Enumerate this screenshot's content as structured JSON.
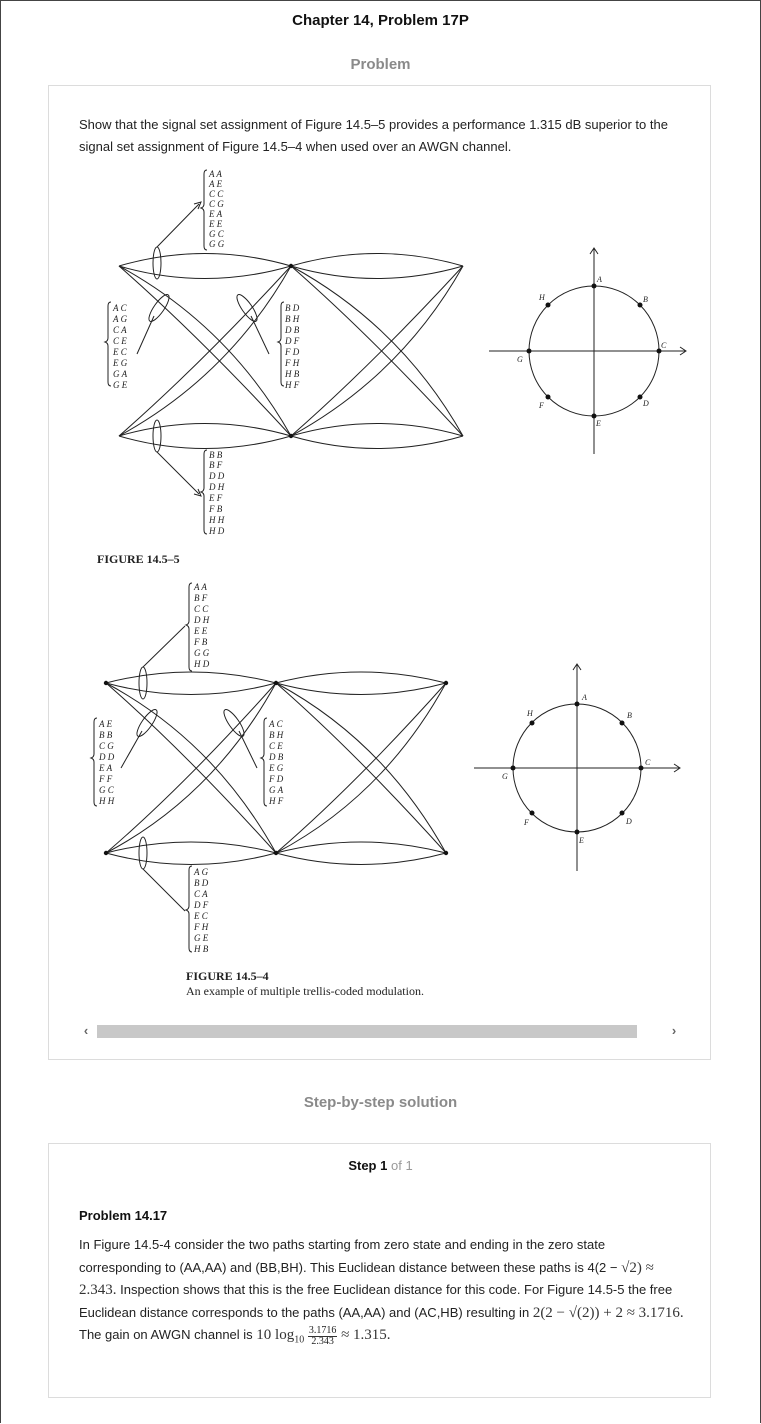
{
  "page": {
    "title": "Chapter 14, Problem 17P",
    "problem_heading": "Problem",
    "solution_heading": "Step-by-step solution"
  },
  "problem": {
    "text": "Show that the signal set assignment of Figure 14.5–5 provides a performance 1.315 dB superior to the signal set assignment of Figure 14.5–4 when used over an AWGN channel."
  },
  "figure_a": {
    "caption": "FIGURE 14.5–5",
    "top_labels": [
      "A A",
      "A E",
      "C C",
      "C G",
      "E A",
      "E E",
      "G C",
      "G G"
    ],
    "left_labels": [
      "A C",
      "A G",
      "C A",
      "C E",
      "E C",
      "E G",
      "G A",
      "G E"
    ],
    "mid_labels": [
      "B D",
      "B H",
      "D B",
      "D F",
      "F D",
      "F H",
      "H B",
      "H F"
    ],
    "bottom_labels": [
      "B B",
      "B F",
      "D D",
      "D H",
      "E F",
      "F B",
      "H H",
      "H D"
    ],
    "constellation": [
      "A",
      "B",
      "C",
      "D",
      "E",
      "F",
      "G",
      "H"
    ]
  },
  "figure_b": {
    "caption": "FIGURE 14.5–4",
    "subcaption": "An example of multiple trellis-coded modulation.",
    "top_labels": [
      "A A",
      "B F",
      "C C",
      "D H",
      "E E",
      "F B",
      "G G",
      "H D"
    ],
    "left_labels": [
      "A E",
      "B B",
      "C G",
      "D D",
      "E A",
      "F F",
      "G C",
      "H H"
    ],
    "mid_labels": [
      "A C",
      "B H",
      "C E",
      "D B",
      "E G",
      "F D",
      "G A",
      "H F"
    ],
    "bottom_labels": [
      "A G",
      "B D",
      "C A",
      "D F",
      "E C",
      "F H",
      "G E",
      "H B"
    ],
    "constellation": [
      "A",
      "B",
      "C",
      "D",
      "E",
      "F",
      "G",
      "H"
    ]
  },
  "scroll": {
    "left_arrow": "‹",
    "right_arrow": "›"
  },
  "solution": {
    "step_word": "Step",
    "step_num": "1",
    "step_of": "of 1",
    "title": "Problem 14.17",
    "p1": "In Figure 14.5-4 consider the two paths starting from zero state and ending in the zero state corresponding to (AA,AA) and (BB,BH). This Euclidean distance between these paths is 4(2 −",
    "p2_math": "√2) ≈ 2.343.",
    "p2": " Inspection shows that this is the free Euclidean distance for this code. For Figure 14.5-5 the free Euclidean distance corresponds to the paths (AA,AA) and (AC,HB) resulting in",
    "p3_math": "2(2 − √(2)) + 2 ≈ 3.1716.",
    "p3": " The gain on AWGN channel is ",
    "p3_math2": "10 log",
    "p3_sub": "10",
    "frac_num": "3.1716",
    "frac_den": "2.343",
    "p3_end": " ≈ 1.315."
  }
}
